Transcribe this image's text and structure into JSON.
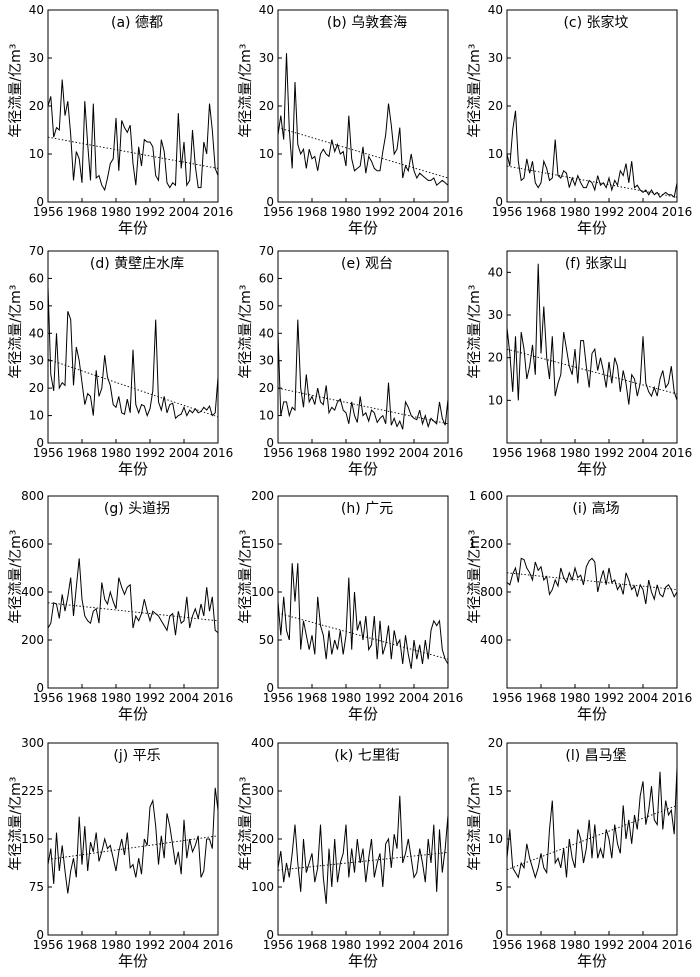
{
  "figure": {
    "xlabel": "年份",
    "ylabel": "年径流量/亿m³",
    "x_ticks": [
      1956,
      1968,
      1980,
      1992,
      2004,
      2016
    ]
  },
  "chart_data": [
    {
      "type": "line",
      "title": "(a) 德都",
      "ylim": [
        0,
        40
      ],
      "yticks": [
        0,
        10,
        20,
        30,
        40
      ],
      "yticklabels": [
        "0",
        "10",
        "20",
        "30",
        "40"
      ],
      "x_range": [
        1956,
        2016
      ],
      "values": [
        20.0,
        22.0,
        13.5,
        15.5,
        15.0,
        25.5,
        18.0,
        21.0,
        14.0,
        4.5,
        10.5,
        9.0,
        4.0,
        21.0,
        12.0,
        4.5,
        20.5,
        5.0,
        5.5,
        3.5,
        2.5,
        5.0,
        8.0,
        9.0,
        17.5,
        6.5,
        17.0,
        15.5,
        14.5,
        16.0,
        8.0,
        3.5,
        11.5,
        7.5,
        13.0,
        12.5,
        12.5,
        11.5,
        5.5,
        4.5,
        13.0,
        10.5,
        4.0,
        3.0,
        4.0,
        3.5,
        18.5,
        7.0,
        12.5,
        3.5,
        4.5,
        15.0,
        7.5,
        3.0,
        3.0,
        12.5,
        10.0,
        20.5,
        15.0,
        7.0,
        5.5
      ],
      "trend": [
        13.5,
        7.0
      ]
    },
    {
      "type": "line",
      "title": "(b) 乌敦套海",
      "ylim": [
        0,
        40
      ],
      "yticks": [
        0,
        10,
        20,
        30,
        40
      ],
      "yticklabels": [
        "0",
        "10",
        "20",
        "30",
        "40"
      ],
      "x_range": [
        1956,
        2016
      ],
      "values": [
        14.0,
        18.0,
        13.0,
        31.0,
        15.0,
        7.0,
        25.0,
        12.0,
        10.0,
        11.0,
        7.0,
        11.0,
        9.0,
        9.5,
        6.5,
        10.0,
        11.0,
        10.0,
        9.5,
        13.0,
        10.5,
        12.0,
        10.0,
        10.5,
        7.5,
        18.0,
        9.0,
        6.5,
        7.0,
        7.5,
        11.5,
        6.0,
        9.5,
        8.5,
        7.0,
        6.5,
        6.5,
        10.5,
        14.0,
        20.5,
        16.0,
        10.0,
        11.0,
        15.5,
        5.0,
        7.5,
        6.5,
        10.0,
        6.5,
        5.0,
        6.0,
        5.5,
        5.0,
        4.5,
        4.5,
        5.0,
        3.5,
        4.0,
        4.5,
        4.0,
        3.5
      ],
      "trend": [
        15.5,
        5.0
      ]
    },
    {
      "type": "line",
      "title": "(c) 张家坟",
      "ylim": [
        0,
        40
      ],
      "yticks": [
        0,
        10,
        20,
        30,
        40
      ],
      "yticklabels": [
        "0",
        "10",
        "20",
        "30",
        "40"
      ],
      "x_range": [
        1956,
        2016
      ],
      "values": [
        10.0,
        7.5,
        15.0,
        19.0,
        8.5,
        4.5,
        5.0,
        9.0,
        6.0,
        8.5,
        4.0,
        3.0,
        4.0,
        8.5,
        7.0,
        4.5,
        5.0,
        13.0,
        5.5,
        5.0,
        6.5,
        6.0,
        3.0,
        5.0,
        3.5,
        5.5,
        4.0,
        3.0,
        3.0,
        4.5,
        4.0,
        2.5,
        5.5,
        3.5,
        4.0,
        3.0,
        5.0,
        2.5,
        4.5,
        3.5,
        6.5,
        5.5,
        8.0,
        4.0,
        8.5,
        3.0,
        3.5,
        2.5,
        2.0,
        2.5,
        1.5,
        2.5,
        1.5,
        2.0,
        1.0,
        1.5,
        2.0,
        1.5,
        1.5,
        1.0,
        4.0
      ],
      "trend": [
        7.5,
        1.0
      ]
    },
    {
      "type": "line",
      "title": "(d) 黄壁庄水库",
      "ylim": [
        0,
        70
      ],
      "yticks": [
        0,
        10,
        20,
        30,
        40,
        50,
        60,
        70
      ],
      "yticklabels": [
        "0",
        "10",
        "20",
        "30",
        "40",
        "50",
        "60",
        "70"
      ],
      "x_range": [
        1956,
        2016
      ],
      "values": [
        57.0,
        25.0,
        19.0,
        40.0,
        20.0,
        22.0,
        21.0,
        48.0,
        45.0,
        21.0,
        35.0,
        30.0,
        22.0,
        14.0,
        18.0,
        17.0,
        10.0,
        26.5,
        17.0,
        20.0,
        32.0,
        24.0,
        21.0,
        14.0,
        13.0,
        17.0,
        11.0,
        10.5,
        16.0,
        11.0,
        34.0,
        14.0,
        11.0,
        14.0,
        13.5,
        10.0,
        12.5,
        19.0,
        45.0,
        15.0,
        12.0,
        17.0,
        11.0,
        14.0,
        14.5,
        9.0,
        10.0,
        10.5,
        13.0,
        10.0,
        12.0,
        11.0,
        12.5,
        11.0,
        11.5,
        13.0,
        12.0,
        13.5,
        10.0,
        11.0,
        24.0
      ],
      "trend": [
        30.5,
        9.5
      ]
    },
    {
      "type": "line",
      "title": "(e) 观台",
      "ylim": [
        0,
        70
      ],
      "yticks": [
        0,
        10,
        20,
        30,
        40,
        50,
        60,
        70
      ],
      "yticklabels": [
        "0",
        "10",
        "20",
        "30",
        "40",
        "50",
        "60",
        "70"
      ],
      "x_range": [
        1956,
        2016
      ],
      "values": [
        40.0,
        10.0,
        15.0,
        15.0,
        10.0,
        13.0,
        12.0,
        45.0,
        20.0,
        13.0,
        25.0,
        15.0,
        17.0,
        14.0,
        20.0,
        15.0,
        14.0,
        21.0,
        11.0,
        13.0,
        12.0,
        15.0,
        16.0,
        12.0,
        11.0,
        7.0,
        15.0,
        10.0,
        7.5,
        17.0,
        10.0,
        11.0,
        8.0,
        12.0,
        11.0,
        7.5,
        9.0,
        10.0,
        7.0,
        22.0,
        6.5,
        9.0,
        6.0,
        8.0,
        5.0,
        15.0,
        13.0,
        10.0,
        9.0,
        8.5,
        12.0,
        7.0,
        10.0,
        6.0,
        9.0,
        8.0,
        7.0,
        15.0,
        9.0,
        6.5,
        16.0
      ],
      "trend": [
        20.0,
        7.0
      ]
    },
    {
      "type": "line",
      "title": "(f) 张家山",
      "ylim": [
        0,
        45
      ],
      "yticks": [
        10,
        20,
        30,
        40
      ],
      "yticklabels": [
        "10",
        "20",
        "30",
        "40"
      ],
      "x_range": [
        1956,
        2016
      ],
      "values": [
        27.0,
        21.0,
        12.0,
        25.0,
        10.0,
        26.0,
        22.0,
        15.0,
        18.0,
        23.0,
        16.0,
        42.0,
        21.0,
        32.0,
        20.0,
        15.0,
        25.0,
        11.0,
        14.0,
        16.0,
        26.0,
        22.0,
        18.0,
        16.0,
        22.0,
        14.0,
        24.0,
        24.0,
        18.0,
        13.0,
        21.0,
        22.0,
        17.0,
        20.0,
        17.0,
        13.0,
        19.0,
        14.0,
        20.0,
        18.0,
        12.0,
        17.0,
        14.0,
        9.0,
        16.0,
        15.0,
        11.0,
        14.0,
        25.0,
        14.0,
        12.0,
        11.0,
        13.0,
        11.0,
        15.0,
        17.0,
        13.0,
        14.0,
        18.0,
        12.0,
        10.0
      ],
      "trend": [
        22.0,
        11.5
      ]
    },
    {
      "type": "line",
      "title": "(g) 头道拐",
      "ylim": [
        0,
        800
      ],
      "yticks": [
        0,
        200,
        400,
        600,
        800
      ],
      "yticklabels": [
        "0",
        "200",
        "400",
        "600",
        "800"
      ],
      "x_range": [
        1956,
        2016
      ],
      "values": [
        250.0,
        270.0,
        355.0,
        350.0,
        290.0,
        390.0,
        320.0,
        380.0,
        460.0,
        300.0,
        420.0,
        540.0,
        370.0,
        300.0,
        280.0,
        270.0,
        320.0,
        330.0,
        270.0,
        440.0,
        370.0,
        350.0,
        400.0,
        360.0,
        330.0,
        460.0,
        420.0,
        390.0,
        420.0,
        430.0,
        250.0,
        300.0,
        280.0,
        310.0,
        370.0,
        320.0,
        280.0,
        320.0,
        310.0,
        300.0,
        280.0,
        260.0,
        240.0,
        300.0,
        310.0,
        220.0,
        320.0,
        270.0,
        280.0,
        380.0,
        250.0,
        300.0,
        330.0,
        290.0,
        350.0,
        300.0,
        420.0,
        320.0,
        380.0,
        240.0,
        230.0
      ],
      "trend": [
        355.0,
        280.0
      ]
    },
    {
      "type": "line",
      "title": "(h) 广元",
      "ylim": [
        0,
        200
      ],
      "yticks": [
        0,
        50,
        100,
        150,
        200
      ],
      "yticklabels": [
        "0",
        "50",
        "100",
        "150",
        "200"
      ],
      "x_range": [
        1956,
        2016
      ],
      "values": [
        90.0,
        55.0,
        95.0,
        60.0,
        50.0,
        130.0,
        90.0,
        130.0,
        40.0,
        70.0,
        55.0,
        40.0,
        55.0,
        35.0,
        95.0,
        65.0,
        55.0,
        30.0,
        60.0,
        35.0,
        50.0,
        40.0,
        60.0,
        35.0,
        55.0,
        115.0,
        40.0,
        100.0,
        60.0,
        70.0,
        50.0,
        75.0,
        40.0,
        45.0,
        75.0,
        30.0,
        70.0,
        35.0,
        45.0,
        65.0,
        30.0,
        60.0,
        45.0,
        50.0,
        25.0,
        55.0,
        35.0,
        20.0,
        50.0,
        30.0,
        45.0,
        25.0,
        50.0,
        30.0,
        60.0,
        70.0,
        65.0,
        70.0,
        40.0,
        30.0,
        25.0
      ],
      "trend": [
        78.0,
        30.0
      ]
    },
    {
      "type": "line",
      "title": "(i) 高场",
      "ylim": [
        0,
        1600
      ],
      "yticks": [
        400,
        800,
        1200,
        1600
      ],
      "yticklabels": [
        "400",
        "800",
        "1 200",
        "1 600"
      ],
      "x_range": [
        1956,
        2016
      ],
      "values": [
        880.0,
        860.0,
        950.0,
        1000.0,
        880.0,
        1080.0,
        1070.0,
        1000.0,
        960.0,
        900.0,
        1050.0,
        980.0,
        1010.0,
        900.0,
        930.0,
        780.0,
        820.0,
        900.0,
        850.0,
        1000.0,
        920.0,
        880.0,
        960.0,
        900.0,
        1000.0,
        920.0,
        940.0,
        860.0,
        1010.0,
        1060.0,
        1080.0,
        1050.0,
        800.0,
        900.0,
        980.0,
        860.0,
        1000.0,
        880.0,
        900.0,
        820.0,
        860.0,
        780.0,
        960.0,
        900.0,
        820.0,
        850.0,
        760.0,
        860.0,
        820.0,
        700.0,
        900.0,
        800.0,
        740.0,
        860.0,
        780.0,
        760.0,
        840.0,
        860.0,
        820.0,
        760.0,
        800.0
      ],
      "trend": [
        960.0,
        820.0
      ]
    },
    {
      "type": "line",
      "title": "(j) 平乐",
      "ylim": [
        0,
        300
      ],
      "yticks": [
        0,
        75,
        150,
        225,
        300
      ],
      "yticklabels": [
        "0",
        "75",
        "150",
        "225",
        "300"
      ],
      "x_range": [
        1956,
        2016
      ],
      "values": [
        110.0,
        135.0,
        80.0,
        160.0,
        100.0,
        140.0,
        100.0,
        65.0,
        100.0,
        120.0,
        90.0,
        185.0,
        110.0,
        170.0,
        100.0,
        145.0,
        130.0,
        160.0,
        115.0,
        130.0,
        150.0,
        135.0,
        140.0,
        120.0,
        100.0,
        130.0,
        150.0,
        125.0,
        160.0,
        105.0,
        110.0,
        90.0,
        120.0,
        95.0,
        150.0,
        140.0,
        200.0,
        210.0,
        170.0,
        110.0,
        155.0,
        120.0,
        190.0,
        170.0,
        140.0,
        110.0,
        130.0,
        95.0,
        180.0,
        120.0,
        150.0,
        130.0,
        140.0,
        155.0,
        90.0,
        100.0,
        150.0,
        150.0,
        135.0,
        230.0,
        195.0
      ],
      "trend": [
        118.0,
        155.0
      ]
    },
    {
      "type": "line",
      "title": "(k) 七里街",
      "ylim": [
        0,
        400
      ],
      "yticks": [
        0,
        100,
        200,
        300,
        400
      ],
      "yticklabels": [
        "0",
        "100",
        "200",
        "300",
        "400"
      ],
      "x_range": [
        1956,
        2016
      ],
      "values": [
        140.0,
        175.0,
        110.0,
        150.0,
        120.0,
        170.0,
        230.0,
        150.0,
        90.0,
        200.0,
        130.0,
        150.0,
        170.0,
        110.0,
        140.0,
        230.0,
        120.0,
        65.0,
        180.0,
        100.0,
        200.0,
        110.0,
        150.0,
        170.0,
        230.0,
        120.0,
        180.0,
        130.0,
        200.0,
        150.0,
        180.0,
        110.0,
        160.0,
        200.0,
        120.0,
        150.0,
        170.0,
        100.0,
        190.0,
        200.0,
        140.0,
        210.0,
        180.0,
        290.0,
        150.0,
        170.0,
        200.0,
        160.0,
        120.0,
        130.0,
        180.0,
        150.0,
        110.0,
        200.0,
        150.0,
        230.0,
        90.0,
        220.0,
        130.0,
        180.0,
        250.0
      ],
      "trend": [
        135.0,
        172.0
      ]
    },
    {
      "type": "line",
      "title": "(l) 昌马堡",
      "ylim": [
        0,
        20
      ],
      "yticks": [
        0,
        5,
        10,
        15,
        20
      ],
      "yticklabels": [
        "0",
        "5",
        "10",
        "15",
        "20"
      ],
      "x_range": [
        1956,
        2016
      ],
      "values": [
        8.0,
        11.0,
        7.0,
        6.5,
        6.0,
        7.5,
        7.0,
        9.5,
        8.0,
        7.0,
        6.0,
        7.0,
        8.5,
        7.0,
        6.5,
        11.0,
        14.0,
        7.5,
        8.0,
        7.0,
        9.0,
        6.0,
        10.0,
        8.0,
        7.0,
        11.0,
        10.0,
        7.5,
        9.0,
        12.0,
        8.0,
        11.5,
        8.0,
        9.0,
        8.0,
        11.0,
        10.0,
        8.0,
        11.5,
        9.5,
        8.5,
        13.5,
        10.0,
        12.0,
        9.5,
        12.5,
        11.0,
        14.5,
        16.0,
        11.5,
        13.0,
        15.5,
        12.0,
        11.5,
        17.0,
        11.0,
        14.0,
        12.5,
        13.0,
        10.5,
        17.5
      ],
      "trend": [
        6.8,
        13.5
      ]
    }
  ]
}
